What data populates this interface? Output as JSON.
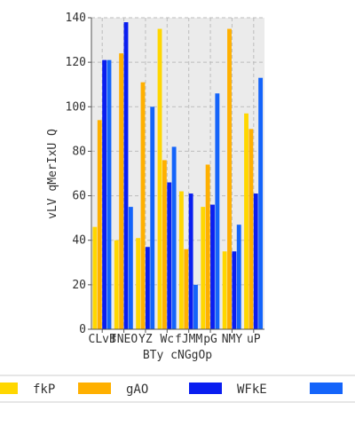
{
  "chart_data": {
    "type": "bar",
    "categories": [
      "CLvB",
      "fNEO",
      "YZ",
      "Wc",
      "fJMM",
      "pG",
      "NMY",
      "uP"
    ],
    "xlabel": "BTy cNGgOp",
    "ylabel": "vLV qMerIxU Q",
    "ylim": [
      0,
      140
    ],
    "yticks": [
      0,
      20,
      40,
      60,
      80,
      100,
      120,
      140
    ],
    "grid": true,
    "legend_position": "bottom",
    "series": [
      {
        "name": "fkP",
        "color": "#FFD700",
        "values": [
          46,
          40,
          41,
          135,
          62,
          55,
          35,
          97
        ]
      },
      {
        "name": "gAO",
        "color": "#FFB000",
        "values": [
          94,
          124,
          111,
          76,
          36,
          74,
          135,
          90
        ]
      },
      {
        "name": "WFkE",
        "color": "#0A1EF0",
        "values": [
          121,
          138,
          37,
          66,
          61,
          56,
          35,
          61
        ]
      },
      {
        "name": "",
        "color": "#1464FA",
        "values": [
          121,
          55,
          100,
          82,
          20,
          106,
          47,
          113
        ]
      }
    ]
  }
}
